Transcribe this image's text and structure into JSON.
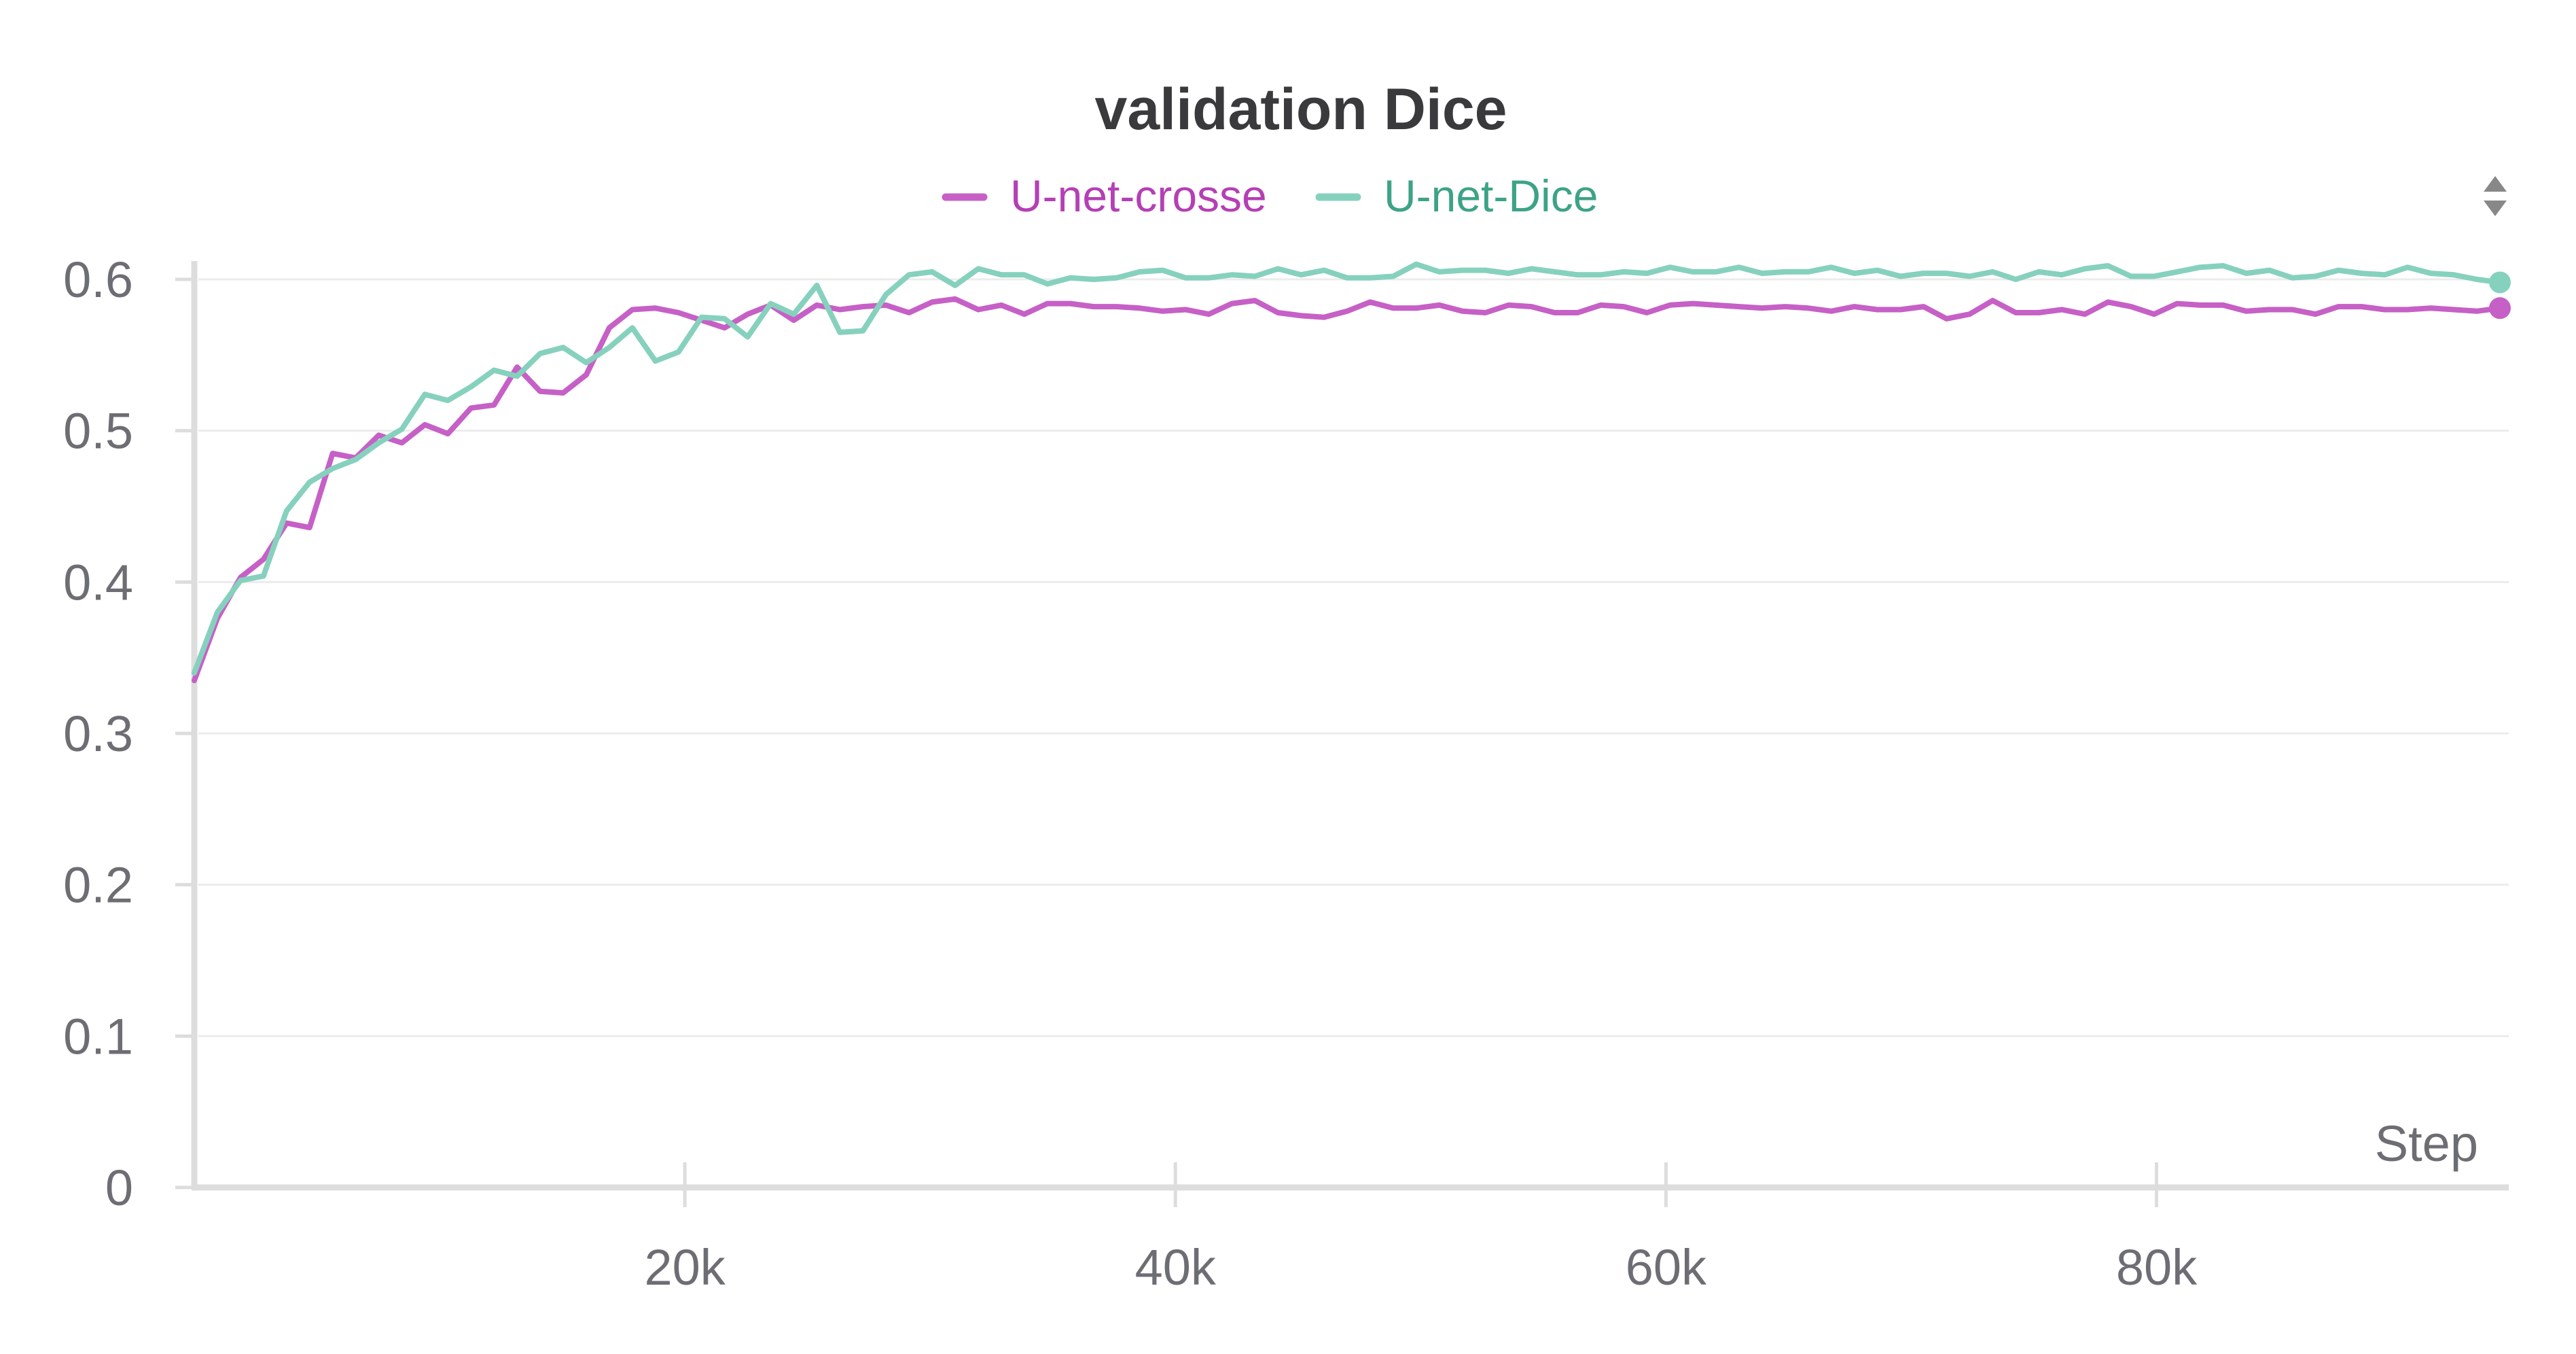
{
  "chart_data": {
    "type": "line",
    "title": "validation Dice",
    "xlabel": "Step",
    "ylabel": "",
    "xlim": [
      0,
      94000
    ],
    "ylim": [
      0,
      0.6
    ],
    "xticks": [
      20000,
      40000,
      60000,
      80000
    ],
    "xtick_labels": [
      "20k",
      "40k",
      "60k",
      "80k"
    ],
    "yticks": [
      0,
      0.1,
      0.2,
      0.3,
      0.4,
      0.5,
      0.6
    ],
    "ytick_labels": [
      "0",
      "0.1",
      "0.2",
      "0.3",
      "0.4",
      "0.5",
      "0.6"
    ],
    "grid": true,
    "legend_position": "top-center",
    "x": [
      0,
      940,
      1880,
      2820,
      3760,
      4700,
      5640,
      6580,
      7520,
      8460,
      9400,
      10340,
      11280,
      12220,
      13160,
      14100,
      15040,
      15980,
      16920,
      17860,
      18800,
      19740,
      20680,
      21620,
      22560,
      23500,
      24440,
      25380,
      26320,
      27260,
      28200,
      29140,
      30080,
      31020,
      31960,
      32900,
      33840,
      34780,
      35720,
      36660,
      37600,
      38540,
      39480,
      40420,
      41360,
      42300,
      43240,
      44180,
      45120,
      46060,
      47000,
      47940,
      48880,
      49820,
      50760,
      51700,
      52640,
      53580,
      54520,
      55460,
      56400,
      57340,
      58280,
      59220,
      60160,
      61100,
      62040,
      62980,
      63920,
      64860,
      65800,
      66740,
      67680,
      68620,
      69560,
      70500,
      71440,
      72380,
      73320,
      74260,
      75200,
      76140,
      77080,
      78020,
      78960,
      79900,
      80840,
      81780,
      82720,
      83660,
      84600,
      85540,
      86480,
      87420,
      88360,
      89300,
      90240,
      91180,
      92120,
      93060,
      94000
    ],
    "series": [
      {
        "name": "U-net-crosse",
        "color": "#c660c6",
        "values": [
          0.335,
          0.376,
          0.403,
          0.415,
          0.439,
          0.436,
          0.485,
          0.482,
          0.497,
          0.492,
          0.504,
          0.498,
          0.515,
          0.517,
          0.542,
          0.526,
          0.525,
          0.537,
          0.568,
          0.58,
          0.581,
          0.578,
          0.573,
          0.568,
          0.577,
          0.583,
          0.573,
          0.583,
          0.58,
          0.582,
          0.583,
          0.578,
          0.585,
          0.587,
          0.58,
          0.583,
          0.577,
          0.584,
          0.584,
          0.582,
          0.582,
          0.581,
          0.579,
          0.58,
          0.577,
          0.584,
          0.586,
          0.578,
          0.576,
          0.575,
          0.579,
          0.585,
          0.581,
          0.581,
          0.583,
          0.579,
          0.578,
          0.583,
          0.582,
          0.578,
          0.578,
          0.583,
          0.582,
          0.578,
          0.583,
          0.584,
          0.583,
          0.582,
          0.581,
          0.582,
          0.581,
          0.579,
          0.582,
          0.58,
          0.58,
          0.582,
          0.574,
          0.577,
          0.586,
          0.578,
          0.578,
          0.58,
          0.577,
          0.585,
          0.582,
          0.577,
          0.584,
          0.583,
          0.583,
          0.579,
          0.58,
          0.58,
          0.577,
          0.582,
          0.582,
          0.58,
          0.58,
          0.581,
          0.58,
          0.579,
          0.581
        ]
      },
      {
        "name": "U-net-Dice",
        "color": "#86d1bd",
        "values": [
          0.34,
          0.38,
          0.401,
          0.404,
          0.447,
          0.466,
          0.475,
          0.481,
          0.492,
          0.501,
          0.524,
          0.52,
          0.529,
          0.54,
          0.536,
          0.551,
          0.555,
          0.545,
          0.555,
          0.568,
          0.546,
          0.552,
          0.575,
          0.574,
          0.562,
          0.584,
          0.577,
          0.596,
          0.565,
          0.566,
          0.59,
          0.603,
          0.605,
          0.596,
          0.607,
          0.603,
          0.603,
          0.597,
          0.601,
          0.6,
          0.601,
          0.605,
          0.606,
          0.601,
          0.601,
          0.603,
          0.602,
          0.607,
          0.603,
          0.606,
          0.601,
          0.601,
          0.602,
          0.61,
          0.605,
          0.606,
          0.606,
          0.604,
          0.607,
          0.605,
          0.603,
          0.603,
          0.605,
          0.604,
          0.608,
          0.605,
          0.605,
          0.608,
          0.604,
          0.605,
          0.605,
          0.608,
          0.604,
          0.606,
          0.602,
          0.604,
          0.604,
          0.602,
          0.605,
          0.6,
          0.605,
          0.603,
          0.607,
          0.609,
          0.602,
          0.602,
          0.605,
          0.608,
          0.609,
          0.604,
          0.606,
          0.601,
          0.602,
          0.606,
          0.604,
          0.603,
          0.608,
          0.604,
          0.603,
          0.6,
          0.598
        ]
      }
    ]
  },
  "colors": {
    "background": "#ffffff",
    "title": "#3a3a3d",
    "tick_label": "#6d6d74",
    "axis": "#dddddd",
    "grid": "#ececec",
    "crosse_legend_text": "#b53fb5",
    "dice_legend_text": "#3da386",
    "sort_icon": "#888888"
  },
  "controls": {
    "sort_icon": "sort-up-down-icon"
  }
}
